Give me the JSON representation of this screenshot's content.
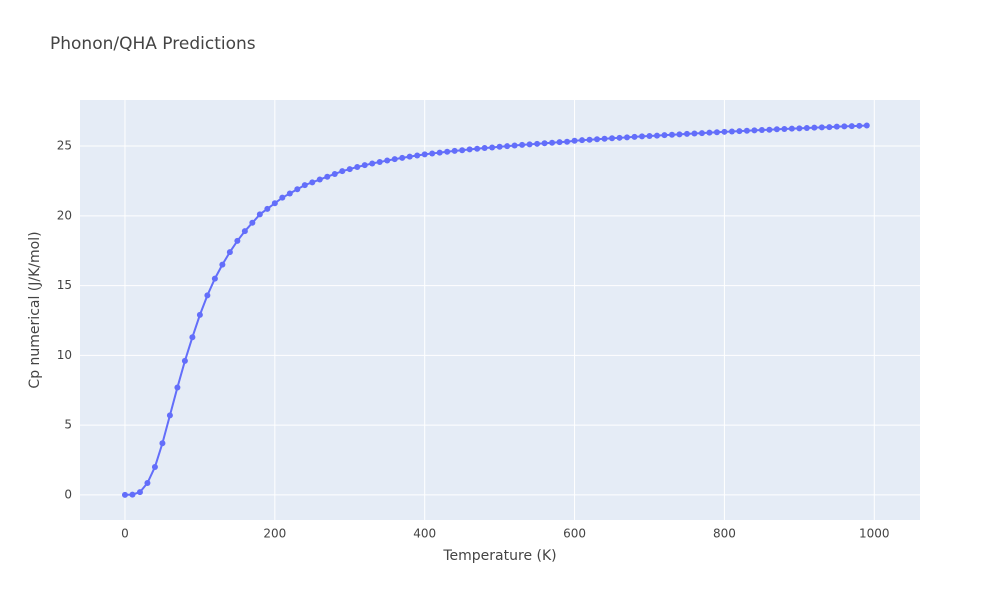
{
  "chart_data": {
    "type": "line",
    "title": "Phonon/QHA Predictions",
    "x_label": "Temperature (K)",
    "y_label": "Cp numerical (J/K/mol)",
    "x": [
      0,
      10,
      20,
      30,
      40,
      50,
      60,
      70,
      80,
      90,
      100,
      110,
      120,
      130,
      140,
      150,
      160,
      170,
      180,
      190,
      200,
      210,
      220,
      230,
      240,
      250,
      260,
      270,
      280,
      290,
      300,
      310,
      320,
      330,
      340,
      350,
      360,
      370,
      380,
      390,
      400,
      410,
      420,
      430,
      440,
      450,
      460,
      470,
      480,
      490,
      500,
      510,
      520,
      530,
      540,
      550,
      560,
      570,
      580,
      590,
      600,
      610,
      620,
      630,
      640,
      650,
      660,
      670,
      680,
      690,
      700,
      710,
      720,
      730,
      740,
      750,
      760,
      770,
      780,
      790,
      800,
      810,
      820,
      830,
      840,
      850,
      860,
      870,
      880,
      890,
      900,
      910,
      920,
      930,
      940,
      950,
      960,
      970,
      980,
      990
    ],
    "series": [
      {
        "color": "#636efa",
        "values": [
          0,
          0.02,
          0.2,
          0.85,
          2.0,
          3.7,
          5.7,
          7.7,
          9.6,
          11.3,
          12.9,
          14.3,
          15.5,
          16.5,
          17.4,
          18.2,
          18.9,
          19.5,
          20.1,
          20.5,
          20.9,
          21.3,
          21.6,
          21.9,
          22.2,
          22.4,
          22.6,
          22.8,
          23.0,
          23.2,
          23.35,
          23.5,
          23.63,
          23.75,
          23.86,
          23.96,
          24.06,
          24.15,
          24.24,
          24.32,
          24.4,
          24.47,
          24.53,
          24.59,
          24.65,
          24.7,
          24.76,
          24.81,
          24.86,
          24.9,
          24.95,
          24.99,
          25.04,
          25.08,
          25.12,
          25.16,
          25.2,
          25.24,
          25.28,
          25.31,
          25.38,
          25.42,
          25.45,
          25.49,
          25.52,
          25.56,
          25.59,
          25.62,
          25.66,
          25.69,
          25.72,
          25.75,
          25.78,
          25.81,
          25.84,
          25.87,
          25.9,
          25.93,
          25.96,
          25.99,
          26.02,
          26.04,
          26.07,
          26.1,
          26.12,
          26.15,
          26.17,
          26.2,
          26.22,
          26.25,
          26.27,
          26.29,
          26.32,
          26.34,
          26.36,
          26.39,
          26.41,
          26.43,
          26.45,
          26.47
        ]
      }
    ],
    "xlim": [
      -60,
      1061
    ],
    "ylim": [
      -1.8,
      28.3
    ],
    "xticks": [
      0,
      200,
      400,
      600,
      800,
      1000
    ],
    "yticks": [
      0,
      5,
      10,
      15,
      20,
      25
    ],
    "grid": true,
    "plot_background": "#e5ecf6"
  }
}
